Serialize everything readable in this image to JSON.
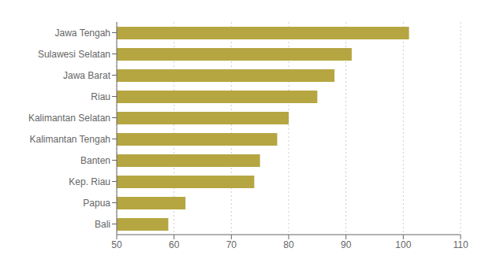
{
  "chart_data": {
    "type": "bar",
    "orientation": "horizontal",
    "categories": [
      "Bali",
      "Papua",
      "Kep. Riau",
      "Banten",
      "Kalimantan Tengah",
      "Kalimantan Selatan",
      "Riau",
      "Jawa Barat",
      "Sulawesi Selatan",
      "Jawa Tengah"
    ],
    "values": [
      59,
      62,
      74,
      75,
      78,
      80,
      85,
      88,
      91,
      101
    ],
    "color": "#b5a642",
    "xlim": [
      50,
      110
    ],
    "xticks": [
      50,
      60,
      70,
      80,
      90,
      100,
      110
    ],
    "grid": true
  }
}
